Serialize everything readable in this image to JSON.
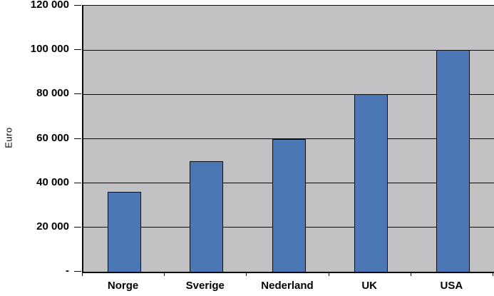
{
  "chart_data": {
    "type": "bar",
    "title": "",
    "xlabel": "",
    "ylabel": "Euro",
    "categories": [
      "Norge",
      "Sverige",
      "Nederland",
      "UK",
      "USA"
    ],
    "values": [
      36000,
      50000,
      60000,
      80000,
      100000
    ],
    "ylim": [
      0,
      120000
    ],
    "ytick_interval": 20000,
    "ytick_labels_top_to_bottom": [
      "120 000",
      "100 000",
      "80 000",
      "60 000",
      "40 000",
      "20 000",
      "-"
    ],
    "zero_tick_label": "-",
    "grid": true,
    "legend": false,
    "legend_position": "none",
    "colors": {
      "bar_fill": "#4c77b5",
      "bar_border": "#0c0c14",
      "plot_background": "#c1c1c4",
      "gridline": "#0a0a0a",
      "axis": "#0a0a0a",
      "text": "#000000",
      "page_background": "#ffffff"
    }
  }
}
